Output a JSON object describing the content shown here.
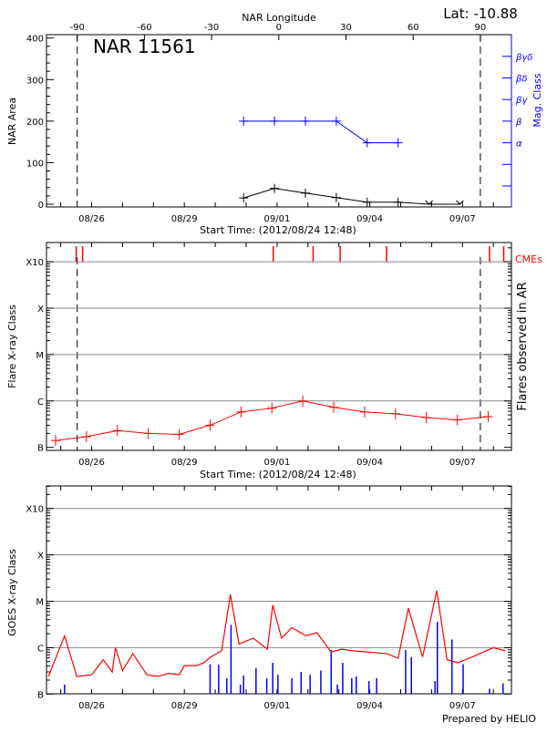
{
  "header": {
    "top_axis_label": "NAR Longitude",
    "latitude": "Lat: -10.88",
    "region_name": "NAR 11561"
  },
  "colors": {
    "axes": "#000000",
    "grid": "#888888",
    "flare": "#ff0000",
    "mag": "#0000ff",
    "goes_short": "#0000ff",
    "goes_long": "#ff0000"
  },
  "footer": {
    "credit": "Prepared by HELIO"
  },
  "chart_data": [
    {
      "type": "line",
      "panel": "nar",
      "ylabel": "NAR Area",
      "ylabel_right": "Mag. Class",
      "xlabel": "Start Time: (2012/08/24 12:48)",
      "xlabel_top": "NAR Longitude",
      "x_ticks": [
        "08/26",
        "08/29",
        "09/01",
        "09/04",
        "09/07"
      ],
      "x_tick_dates": [
        "2012-08-26T00:00",
        "2012-08-29T00:00",
        "2012-09-01T00:00",
        "2012-09-04T00:00",
        "2012-09-07T00:00"
      ],
      "top_ticks": [
        -90,
        -60,
        -30,
        0,
        30,
        60,
        90
      ],
      "limb_longitudes": [
        -90,
        90
      ],
      "ylim": [
        0,
        400
      ],
      "y_ticks": [
        0,
        100,
        200,
        300,
        400
      ],
      "mag_classes": [
        "",
        "",
        "α",
        "β",
        "βγ",
        "βδ",
        "βγδ"
      ],
      "area_series": {
        "x": [
          "2012-08-30T22:00",
          "2012-08-31T22:00",
          "2012-09-01T22:00",
          "2012-09-02T22:00",
          "2012-09-03T22:00",
          "2012-09-04T22:00",
          "2012-09-05T22:00",
          "2012-09-06T22:00"
        ],
        "values": [
          15,
          38,
          27,
          16,
          5,
          5,
          -2,
          -2
        ]
      },
      "mag_series": {
        "x": [
          "2012-08-30T22:00",
          "2012-08-31T22:00",
          "2012-09-01T22:00",
          "2012-09-02T22:00",
          "2012-09-03T22:00",
          "2012-09-04T22:00"
        ],
        "values": [
          "β",
          "β",
          "β",
          "β",
          "α",
          "α"
        ]
      }
    },
    {
      "type": "line",
      "panel": "flares",
      "ylabel": "Flare X-ray Class",
      "ylabel_right": "Flares observed in AR",
      "xlabel": "Start Time: (2012/08/24 12:48)",
      "y_scale": "log",
      "y_ticks": [
        "B",
        "C",
        "M",
        "X",
        "X10"
      ],
      "y_tick_values": [
        1e-07,
        1e-06,
        1e-05,
        0.0001,
        0.001
      ],
      "grid": true,
      "cme_label": "CMEs",
      "cmes": [
        "2012-08-25T12:00",
        "2012-08-25T17:00",
        "2012-08-31T21:00",
        "2012-09-02T04:00",
        "2012-09-03T01:00",
        "2012-09-04T13:00",
        "2012-09-07T21:00",
        "2012-09-08T08:00"
      ],
      "series": {
        "x": [
          "2012-08-24T20:00",
          "2012-08-25T20:00",
          "2012-08-26T20:00",
          "2012-08-27T20:00",
          "2012-08-28T20:00",
          "2012-08-29T20:00",
          "2012-08-30T20:00",
          "2012-08-31T20:00",
          "2012-09-01T20:00",
          "2012-09-02T20:00",
          "2012-09-03T20:00",
          "2012-09-04T20:00",
          "2012-09-05T20:00",
          "2012-09-06T20:00",
          "2012-09-07T20:00"
        ],
        "values": [
          1.4e-07,
          1.7e-07,
          2.3e-07,
          2e-07,
          1.9e-07,
          3e-07,
          5.8e-07,
          7e-07,
          1e-06,
          7.3e-07,
          5.8e-07,
          5.3e-07,
          4.4e-07,
          3.9e-07,
          4.6e-07
        ]
      }
    },
    {
      "type": "line",
      "panel": "goes",
      "ylabel": "GOES X-ray Class",
      "y_scale": "log",
      "y_ticks": [
        "B",
        "C",
        "M",
        "X",
        "X10"
      ],
      "y_tick_values": [
        1e-07,
        1e-06,
        1e-05,
        0.0001,
        0.001
      ],
      "grid": true,
      "long_channel": {
        "x": [
          "2012-08-24T14:30",
          "2012-08-25T03:00",
          "2012-08-25T12:30",
          "2012-08-26T00:00",
          "2012-08-26T09:00",
          "2012-08-26T16:00",
          "2012-08-26T18:30",
          "2012-08-27T00:00",
          "2012-08-27T08:00",
          "2012-08-27T19:00",
          "2012-08-28T03:30",
          "2012-08-28T12:00",
          "2012-08-28T20:00",
          "2012-08-29T00:00",
          "2012-08-29T09:30",
          "2012-08-29T15:00",
          "2012-08-29T20:30",
          "2012-08-30T05:00",
          "2012-08-30T11:45",
          "2012-08-30T18:30",
          "2012-08-31T05:30",
          "2012-08-31T16:30",
          "2012-08-31T20:40",
          "2012-09-01T03:30",
          "2012-09-01T11:30",
          "2012-09-01T22:30",
          "2012-09-02T07:00",
          "2012-09-02T18:00",
          "2012-09-03T02:00",
          "2012-09-03T10:00",
          "2012-09-04T00:00",
          "2012-09-04T13:40",
          "2012-09-04T22:00",
          "2012-09-05T06:00",
          "2012-09-05T17:00",
          "2012-09-06T04:00",
          "2012-09-06T12:00",
          "2012-09-06T20:30",
          "2012-09-07T07:30",
          "2012-09-08T00:00",
          "2012-09-08T09:00"
        ],
        "values": [
          2.4e-07,
          1.8e-06,
          2.4e-07,
          2.6e-07,
          5.5e-07,
          3e-07,
          1e-06,
          3.2e-07,
          7.4e-07,
          2.6e-07,
          2.4e-07,
          2.8e-07,
          2.6e-07,
          4.1e-07,
          4.1e-07,
          4.7e-07,
          6.3e-07,
          8.6e-07,
          1.4e-05,
          1.2e-06,
          1.6e-06,
          9.3e-07,
          8.3e-06,
          1.6e-06,
          2.7e-06,
          1.8e-06,
          2.1e-06,
          8e-07,
          9.3e-07,
          8.6e-07,
          8e-07,
          7.4e-07,
          5.9e-07,
          7.1e-06,
          6.3e-07,
          1.7e-05,
          5.5e-07,
          4.7e-07,
          6.3e-07,
          1e-06,
          8.6e-07
        ]
      },
      "short_channel": {
        "x": [
          "2012-08-25T03:00",
          "2012-08-29T20:00",
          "2012-08-30T02:40",
          "2012-08-30T09:00",
          "2012-08-30T12:15",
          "2012-08-30T19:30",
          "2012-08-30T22:00",
          "2012-08-31T07:40",
          "2012-08-31T16:00",
          "2012-08-31T20:40",
          "2012-09-01T00:40",
          "2012-09-01T11:30",
          "2012-09-01T18:40",
          "2012-09-02T01:40",
          "2012-09-02T10:00",
          "2012-09-02T18:00",
          "2012-09-02T22:50",
          "2012-09-03T03:00",
          "2012-09-03T10:00",
          "2012-09-03T13:30",
          "2012-09-03T23:20",
          "2012-09-04T05:20",
          "2012-09-05T03:50",
          "2012-09-05T08:20",
          "2012-09-06T02:40",
          "2012-09-06T04:30",
          "2012-09-06T15:50",
          "2012-09-07T00:30",
          "2012-09-07T21:00",
          "2012-09-08T07:30"
        ],
        "values": [
          1.6e-07,
          4.4e-07,
          4.3e-07,
          2.2e-07,
          3.1e-06,
          1.6e-07,
          2.5e-07,
          3.6e-07,
          2.2e-07,
          4.7e-07,
          2.6e-07,
          2.2e-07,
          3e-07,
          2.6e-07,
          3.2e-07,
          8.9e-07,
          1.6e-07,
          4.7e-07,
          2.2e-07,
          2.4e-07,
          1.9e-07,
          2.2e-07,
          8.9e-07,
          6.3e-07,
          1.9e-07,
          3.6e-06,
          1.5e-06,
          4.4e-07,
          1.3e-07,
          1.7e-07
        ]
      }
    }
  ]
}
